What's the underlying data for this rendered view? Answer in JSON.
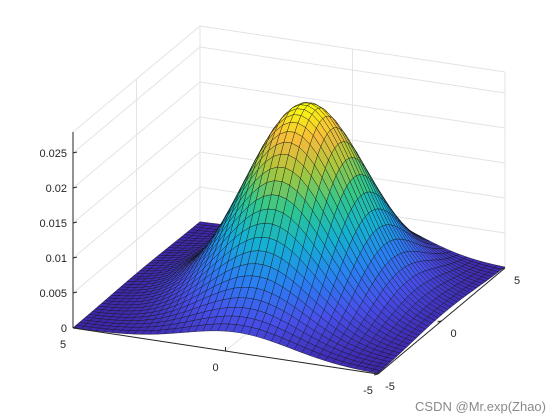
{
  "chart_data": {
    "type": "surface",
    "title": "",
    "xlabel": "",
    "ylabel": "",
    "zlabel": "",
    "x_range": [
      -5,
      5
    ],
    "y_range": [
      -5,
      5
    ],
    "z_range": [
      0,
      0.028
    ],
    "x_ticks": [
      -5,
      0,
      5
    ],
    "y_ticks": [
      -5,
      0,
      5
    ],
    "z_ticks": [
      0,
      0.005,
      0.01,
      0.015,
      0.02,
      0.025
    ],
    "z_tick_labels": [
      "0",
      "0.005",
      "0.01",
      "0.015",
      "0.02",
      "0.025"
    ],
    "grid": true,
    "colormap": "parula",
    "surface_function": {
      "form": "bivariate_gaussian",
      "mean_x": -0.4,
      "mean_y": 0.3,
      "sigma_x": 1.75,
      "sigma_y": 2.5,
      "peak_z": 0.0275
    },
    "mesh_resolution": 41
  },
  "watermark": "CSDN @Mr.exp(Zhao)"
}
